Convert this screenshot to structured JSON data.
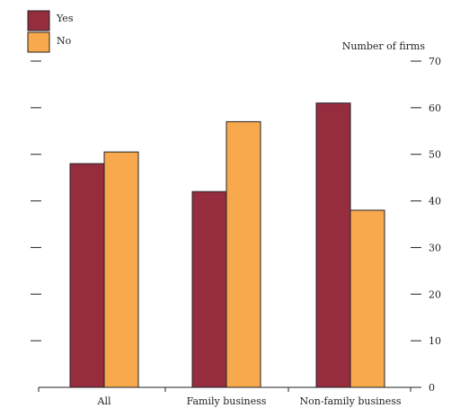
{
  "chart_data": {
    "type": "bar",
    "categories": [
      "All",
      "Family business",
      "Non-family business"
    ],
    "series": [
      {
        "name": "Yes",
        "values": [
          48,
          42,
          61
        ],
        "color": "#952d3f"
      },
      {
        "name": "No",
        "values": [
          50.5,
          57,
          38
        ],
        "color": "#f9a94d"
      }
    ],
    "ylabel": "Number of firms",
    "ylim": [
      0,
      70
    ],
    "yticks": [
      0,
      10,
      20,
      30,
      40,
      50,
      60,
      70
    ],
    "legend_position": "top-left",
    "grid": false
  }
}
